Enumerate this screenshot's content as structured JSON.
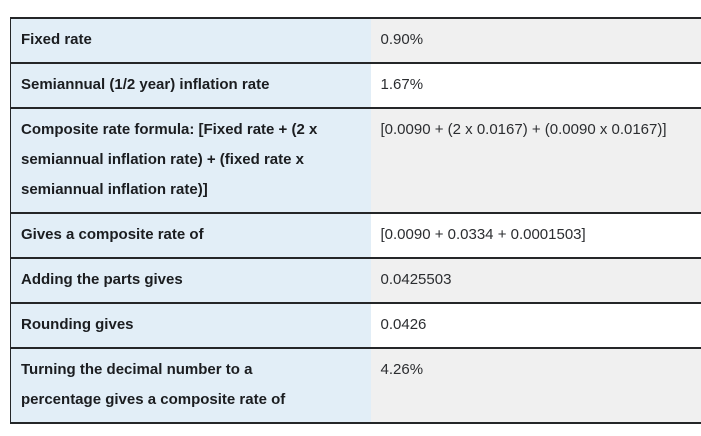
{
  "table": {
    "name": "composite-rate-calculation-table",
    "columns": [
      "label",
      "value"
    ],
    "rows": [
      {
        "label": "Fixed rate",
        "value": "0.90%"
      },
      {
        "label": "Semiannual (1/2 year) inflation rate",
        "value": "1.67%"
      },
      {
        "label": "Composite rate formula: [Fixed rate + (2 x semiannual inflation rate) + (fixed rate x semiannual inflation rate)]",
        "value": "[0.0090 + (2 x 0.0167) + (0.0090 x 0.0167)]"
      },
      {
        "label": "Gives a composite rate of",
        "value": "[0.0090 + 0.0334 + 0.0001503]"
      },
      {
        "label": "Adding the parts gives",
        "value": "0.0425503"
      },
      {
        "label": "Rounding gives",
        "value": "0.0426"
      },
      {
        "label": "Turning the decimal number to a percentage gives a composite rate of",
        "value": "4.26%"
      }
    ],
    "colors": {
      "label_cell_bg": "#e2eef7",
      "value_cell_bg_striped": "#f0f0f0",
      "value_cell_bg_plain": "#ffffff",
      "row_border": "#242628",
      "label_text": "#1b1d20",
      "value_text": "#2b2d30"
    }
  }
}
